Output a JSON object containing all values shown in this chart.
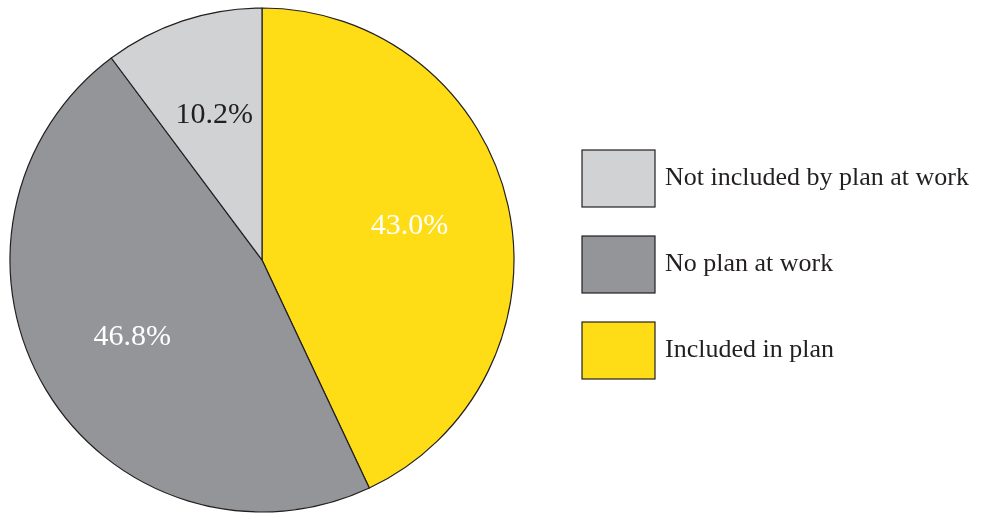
{
  "chart_data": {
    "type": "pie",
    "categories": [
      "Included in plan",
      "No plan at work",
      "Not included by plan at work"
    ],
    "values": [
      43.0,
      46.8,
      10.2
    ],
    "colors": [
      "#fedd17",
      "#939598",
      "#d1d2d4"
    ],
    "value_labels": [
      "43.0%",
      "46.8%",
      "10.2%"
    ],
    "legend": "right"
  }
}
